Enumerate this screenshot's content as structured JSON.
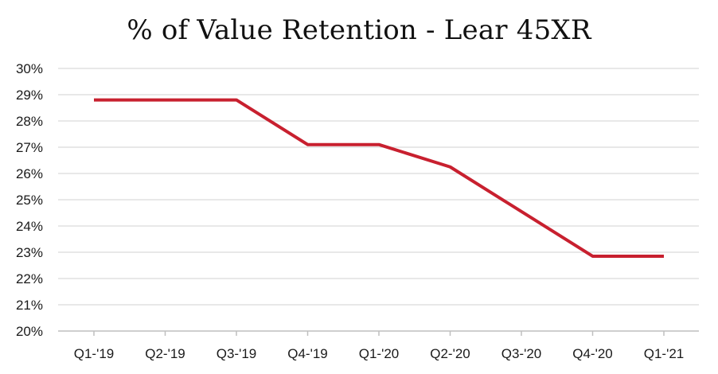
{
  "chart_data": {
    "type": "line",
    "title": "% of Value Retention - Lear 45XR",
    "xlabel": "",
    "ylabel": "",
    "categories": [
      "Q1-'19",
      "Q2-'19",
      "Q3-'19",
      "Q4-'19",
      "Q1-'20",
      "Q2-'20",
      "Q3-'20",
      "Q4-'20",
      "Q1-'21"
    ],
    "series": [
      {
        "values": [
          28.8,
          28.8,
          28.8,
          27.1,
          27.1,
          26.25,
          24.55,
          22.85,
          22.85
        ],
        "color": "#c8202f"
      }
    ],
    "ylim": [
      20,
      30
    ],
    "yticks": [
      "20%",
      "21%",
      "22%",
      "23%",
      "24%",
      "25%",
      "26%",
      "27%",
      "28%",
      "29%",
      "30%"
    ],
    "grid": true,
    "legend": "none",
    "colors": {
      "line": "#c8202f",
      "grid": "#d9d9d9",
      "axis": "#bfbfbf"
    }
  }
}
